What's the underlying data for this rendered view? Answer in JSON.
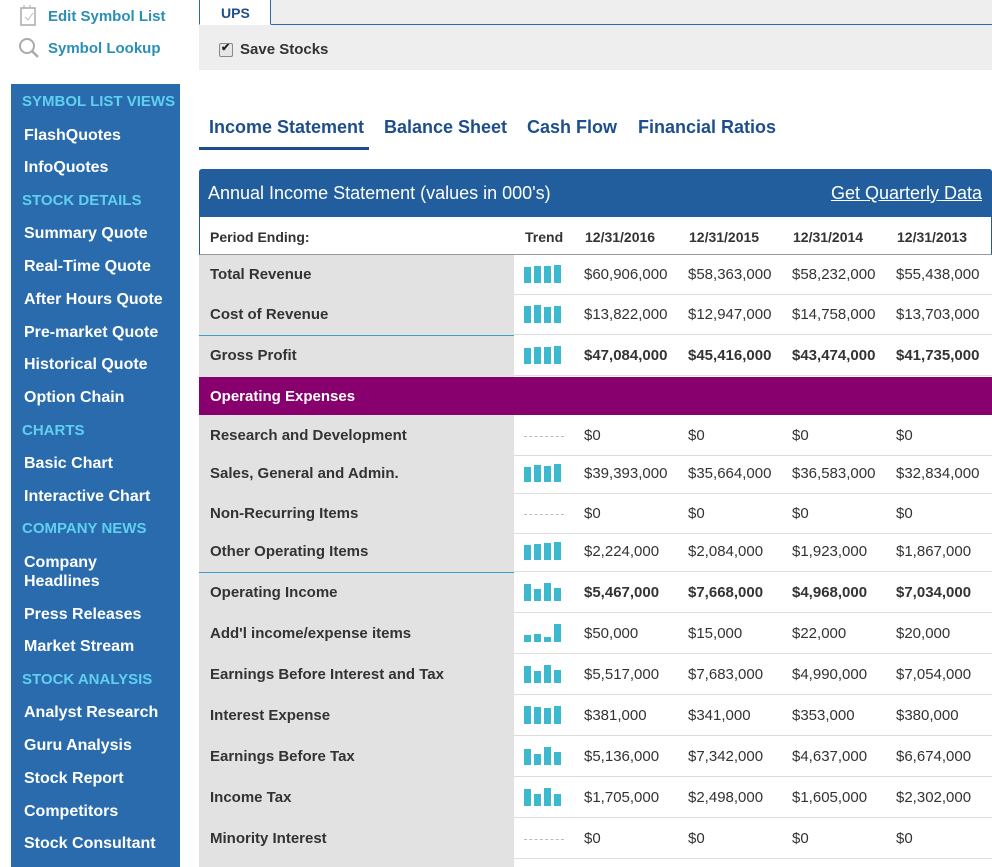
{
  "top_links": {
    "edit": "Edit Symbol List",
    "lookup": "Symbol Lookup"
  },
  "symbol": "UPS",
  "save_label": "Save Stocks",
  "sidebar": {
    "groups": [
      {
        "heading": "SYMBOL LIST VIEWS",
        "items": [
          "FlashQuotes",
          "InfoQuotes"
        ]
      },
      {
        "heading": "STOCK DETAILS",
        "items": [
          "Summary Quote",
          "Real-Time Quote",
          "After Hours Quote",
          "Pre-market Quote",
          "Historical Quote",
          "Option Chain"
        ]
      },
      {
        "heading": "CHARTS",
        "items": [
          "Basic Chart",
          "Interactive Chart"
        ]
      },
      {
        "heading": "COMPANY NEWS",
        "items": [
          "Company Headlines",
          "Press Releases",
          "Market Stream"
        ]
      },
      {
        "heading": "STOCK ANALYSIS",
        "items": [
          "Analyst Research",
          "Guru Analysis",
          "Stock Report",
          "Competitors",
          "Stock Consultant"
        ]
      }
    ]
  },
  "tabs": [
    "Income Statement",
    "Balance Sheet",
    "Cash Flow",
    "Financial Ratios"
  ],
  "active_tab": "Income Statement",
  "table": {
    "title": "Annual Income Statement (values in 000's)",
    "quarterly_link": "Get Quarterly Data",
    "period_label": "Period Ending:",
    "trend_label": "Trend",
    "periods": [
      "12/31/2016",
      "12/31/2015",
      "12/31/2014",
      "12/31/2013"
    ],
    "section_operating": "Operating Expenses",
    "rows": [
      {
        "label": "Total Revenue",
        "values": [
          "$60,906,000",
          "$58,363,000",
          "$58,232,000",
          "$55,438,000"
        ],
        "bold": false
      },
      {
        "label": "Cost of Revenue",
        "values": [
          "$13,822,000",
          "$12,947,000",
          "$14,758,000",
          "$13,703,000"
        ],
        "bold": false
      },
      {
        "label": "Gross Profit",
        "values": [
          "$47,084,000",
          "$45,416,000",
          "$43,474,000",
          "$41,735,000"
        ],
        "bold": true
      },
      {
        "label": "Research and Development",
        "values": [
          "$0",
          "$0",
          "$0",
          "$0"
        ],
        "bold": false
      },
      {
        "label": "Sales, General and Admin.",
        "values": [
          "$39,393,000",
          "$35,664,000",
          "$36,583,000",
          "$32,834,000"
        ],
        "bold": false
      },
      {
        "label": "Non-Recurring Items",
        "values": [
          "$0",
          "$0",
          "$0",
          "$0"
        ],
        "bold": false
      },
      {
        "label": "Other Operating Items",
        "values": [
          "$2,224,000",
          "$2,084,000",
          "$1,923,000",
          "$1,867,000"
        ],
        "bold": false
      },
      {
        "label": "Operating Income",
        "values": [
          "$5,467,000",
          "$7,668,000",
          "$4,968,000",
          "$7,034,000"
        ],
        "bold": true
      },
      {
        "label": "Add'l income/expense items",
        "values": [
          "$50,000",
          "$15,000",
          "$22,000",
          "$20,000"
        ],
        "bold": false
      },
      {
        "label": "Earnings Before Interest and Tax",
        "values": [
          "$5,517,000",
          "$7,683,000",
          "$4,990,000",
          "$7,054,000"
        ],
        "bold": false
      },
      {
        "label": "Interest Expense",
        "values": [
          "$381,000",
          "$341,000",
          "$353,000",
          "$380,000"
        ],
        "bold": false
      },
      {
        "label": "Earnings Before Tax",
        "values": [
          "$5,136,000",
          "$7,342,000",
          "$4,637,000",
          "$6,674,000"
        ],
        "bold": false
      },
      {
        "label": "Income Tax",
        "values": [
          "$1,705,000",
          "$2,498,000",
          "$1,605,000",
          "$2,302,000"
        ],
        "bold": false
      },
      {
        "label": "Minority Interest",
        "values": [
          "$0",
          "$0",
          "$0",
          "$0"
        ],
        "bold": false
      }
    ]
  },
  "colors": {
    "sidebar_bg": "#2a6bad",
    "sidebar_heading": "#5fd0f0",
    "header_bar": "#225e9e",
    "section_band": "#87006e",
    "trend_bar": "#3cb8cf"
  }
}
